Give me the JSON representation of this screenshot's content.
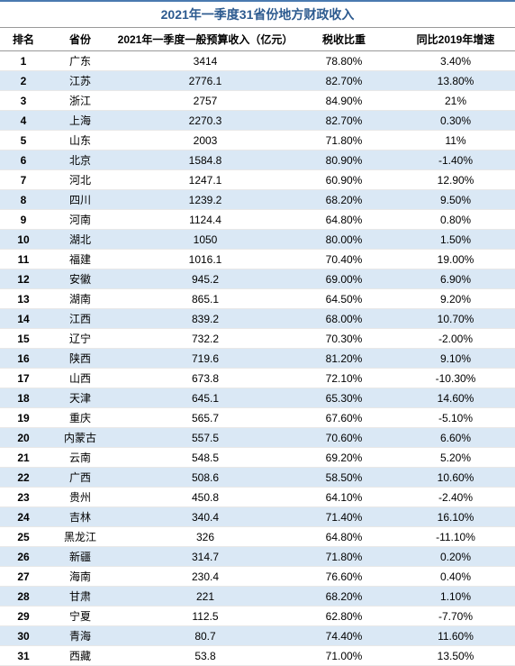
{
  "title": "2021年一季度31省份地方财政收入",
  "columns": [
    "排名",
    "省份",
    "2021年一季度一般预算收入（亿元）",
    "税收比重",
    "同比2019年增速"
  ],
  "colors": {
    "header_text": "#2c5a8f",
    "row_even_bg": "#dae8f5",
    "row_odd_bg": "#ffffff",
    "border_top": "#4a7ab0",
    "header_border": "#999999",
    "row_border": "#e8e8e8"
  },
  "rows": [
    {
      "rank": "1",
      "prov": "广东",
      "rev": "3414",
      "tax": "78.80%",
      "grow": "3.40%"
    },
    {
      "rank": "2",
      "prov": "江苏",
      "rev": "2776.1",
      "tax": "82.70%",
      "grow": "13.80%"
    },
    {
      "rank": "3",
      "prov": "浙江",
      "rev": "2757",
      "tax": "84.90%",
      "grow": "21%"
    },
    {
      "rank": "4",
      "prov": "上海",
      "rev": "2270.3",
      "tax": "82.70%",
      "grow": "0.30%"
    },
    {
      "rank": "5",
      "prov": "山东",
      "rev": "2003",
      "tax": "71.80%",
      "grow": "11%"
    },
    {
      "rank": "6",
      "prov": "北京",
      "rev": "1584.8",
      "tax": "80.90%",
      "grow": "-1.40%"
    },
    {
      "rank": "7",
      "prov": "河北",
      "rev": "1247.1",
      "tax": "60.90%",
      "grow": "12.90%"
    },
    {
      "rank": "8",
      "prov": "四川",
      "rev": "1239.2",
      "tax": "68.20%",
      "grow": "9.50%"
    },
    {
      "rank": "9",
      "prov": "河南",
      "rev": "1124.4",
      "tax": "64.80%",
      "grow": "0.80%"
    },
    {
      "rank": "10",
      "prov": "湖北",
      "rev": "1050",
      "tax": "80.00%",
      "grow": "1.50%"
    },
    {
      "rank": "11",
      "prov": "福建",
      "rev": "1016.1",
      "tax": "70.40%",
      "grow": "19.00%"
    },
    {
      "rank": "12",
      "prov": "安徽",
      "rev": "945.2",
      "tax": "69.00%",
      "grow": "6.90%"
    },
    {
      "rank": "13",
      "prov": "湖南",
      "rev": "865.1",
      "tax": "64.50%",
      "grow": "9.20%"
    },
    {
      "rank": "14",
      "prov": "江西",
      "rev": "839.2",
      "tax": "68.00%",
      "grow": "10.70%"
    },
    {
      "rank": "15",
      "prov": "辽宁",
      "rev": "732.2",
      "tax": "70.30%",
      "grow": "-2.00%"
    },
    {
      "rank": "16",
      "prov": "陕西",
      "rev": "719.6",
      "tax": "81.20%",
      "grow": "9.10%"
    },
    {
      "rank": "17",
      "prov": "山西",
      "rev": "673.8",
      "tax": "72.10%",
      "grow": "-10.30%"
    },
    {
      "rank": "18",
      "prov": "天津",
      "rev": "645.1",
      "tax": "65.30%",
      "grow": "14.60%"
    },
    {
      "rank": "19",
      "prov": "重庆",
      "rev": "565.7",
      "tax": "67.60%",
      "grow": "-5.10%"
    },
    {
      "rank": "20",
      "prov": "内蒙古",
      "rev": "557.5",
      "tax": "70.60%",
      "grow": "6.60%"
    },
    {
      "rank": "21",
      "prov": "云南",
      "rev": "548.5",
      "tax": "69.20%",
      "grow": "5.20%"
    },
    {
      "rank": "22",
      "prov": "广西",
      "rev": "508.6",
      "tax": "58.50%",
      "grow": "10.60%"
    },
    {
      "rank": "23",
      "prov": "贵州",
      "rev": "450.8",
      "tax": "64.10%",
      "grow": "-2.40%"
    },
    {
      "rank": "24",
      "prov": "吉林",
      "rev": "340.4",
      "tax": "71.40%",
      "grow": "16.10%"
    },
    {
      "rank": "25",
      "prov": "黑龙江",
      "rev": "326",
      "tax": "64.80%",
      "grow": "-11.10%"
    },
    {
      "rank": "26",
      "prov": "新疆",
      "rev": "314.7",
      "tax": "71.80%",
      "grow": "0.20%"
    },
    {
      "rank": "27",
      "prov": "海南",
      "rev": "230.4",
      "tax": "76.60%",
      "grow": "0.40%"
    },
    {
      "rank": "28",
      "prov": "甘肃",
      "rev": "221",
      "tax": "68.20%",
      "grow": "1.10%"
    },
    {
      "rank": "29",
      "prov": "宁夏",
      "rev": "112.5",
      "tax": "62.80%",
      "grow": "-7.70%"
    },
    {
      "rank": "30",
      "prov": "青海",
      "rev": "80.7",
      "tax": "74.40%",
      "grow": "11.60%"
    },
    {
      "rank": "31",
      "prov": "西藏",
      "rev": "53.8",
      "tax": "71.00%",
      "grow": "13.50%"
    }
  ]
}
